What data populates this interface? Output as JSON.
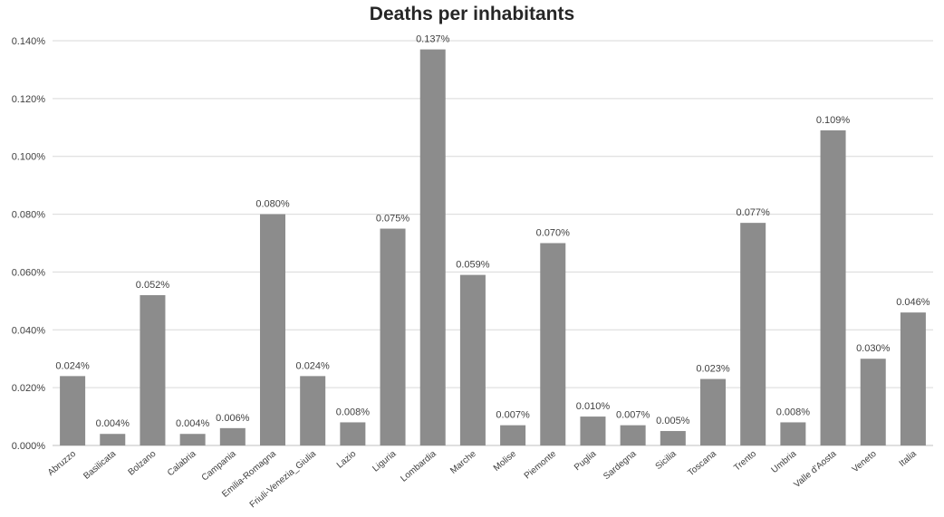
{
  "chart_data": {
    "type": "bar",
    "title": "Deaths per inhabitants",
    "xlabel": "",
    "ylabel": "",
    "categories": [
      "Abruzzo",
      "Basilicata",
      "Bolzano",
      "Calabria",
      "Campania",
      "Emilia-Romagna",
      "Friuli-Venezia_Giulia",
      "Lazio",
      "Liguria",
      "Lombardia",
      "Marche",
      "Molise",
      "Piemonte",
      "Puglia",
      "Sardegna",
      "Sicilia",
      "Toscana",
      "Trento",
      "Umbria",
      "Valle d'Aosta",
      "Veneto",
      "Italia"
    ],
    "values": [
      0.024,
      0.004,
      0.052,
      0.004,
      0.006,
      0.08,
      0.024,
      0.008,
      0.075,
      0.137,
      0.059,
      0.007,
      0.07,
      0.01,
      0.007,
      0.005,
      0.023,
      0.077,
      0.008,
      0.109,
      0.03,
      0.046
    ],
    "data_labels": [
      "0.024%",
      "0.004%",
      "0.052%",
      "0.004%",
      "0.006%",
      "0.080%",
      "0.024%",
      "0.008%",
      "0.075%",
      "0.137%",
      "0.059%",
      "0.007%",
      "0.070%",
      "0.010%",
      "0.007%",
      "0.005%",
      "0.023%",
      "0.077%",
      "0.008%",
      "0.109%",
      "0.030%",
      "0.046%"
    ],
    "ylim": [
      0,
      0.14
    ],
    "yticks": [
      0,
      0.02,
      0.04,
      0.06,
      0.08,
      0.1,
      0.12,
      0.14
    ],
    "ytick_labels": [
      "0.000%",
      "0.020%",
      "0.040%",
      "0.060%",
      "0.080%",
      "0.100%",
      "0.120%",
      "0.140%"
    ],
    "grid": true,
    "legend": "none",
    "colors": {
      "bar": "#8c8c8c",
      "grid": "#d9d9d9",
      "text": "#404040"
    }
  }
}
